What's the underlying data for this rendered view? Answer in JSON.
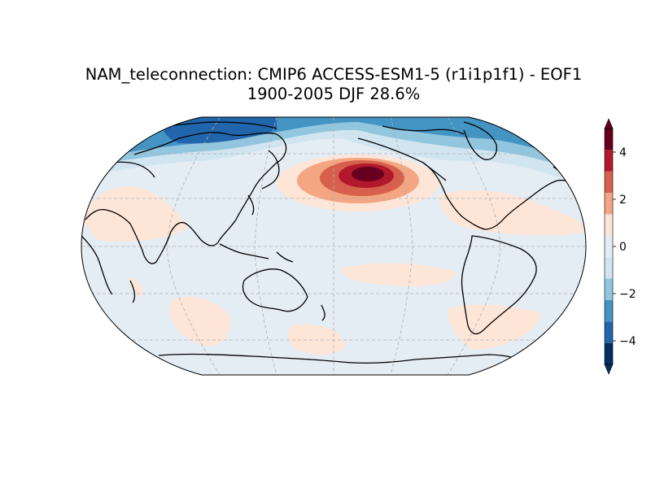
{
  "figure": {
    "title_line1": "NAM_teleconnection: CMIP6 ACCESS-ESM1-5 (r1i1p1f1) - EOF1",
    "title_line2": "1900-2005 DJF 28.6%"
  },
  "map": {
    "projection": "robinson",
    "central_longitude": 180,
    "gridlines": "dashed gray",
    "coastlines": "black"
  },
  "colorbar": {
    "orientation": "vertical",
    "position": "right",
    "extend": "both",
    "cmap": "RdBu_r",
    "range": [
      -5,
      5
    ],
    "levels": [
      -5,
      -4,
      -3,
      -2,
      -1,
      0,
      1,
      2,
      3,
      4,
      5
    ],
    "colors": [
      "#053061",
      "#2166ac",
      "#4393c3",
      "#92c5de",
      "#d1e5f0",
      "#e4ecf4",
      "#fde5d8",
      "#f4a582",
      "#d6604d",
      "#b2182b",
      "#67001f"
    ],
    "ticks": [
      "−4",
      "−2",
      "0",
      "2",
      "4"
    ]
  },
  "field_anomalies": [
    {
      "region": "Arctic / polar cap",
      "sign": "negative",
      "peak_level": -4
    },
    {
      "region": "North Pacific (Aleutian)",
      "sign": "positive",
      "peak_level": 4
    },
    {
      "region": "Subtropical North Atlantic / North America",
      "sign": "positive",
      "peak_level": 1
    },
    {
      "region": "Southern mid-latitudes",
      "sign": "positive",
      "peak_level": 1
    }
  ]
}
